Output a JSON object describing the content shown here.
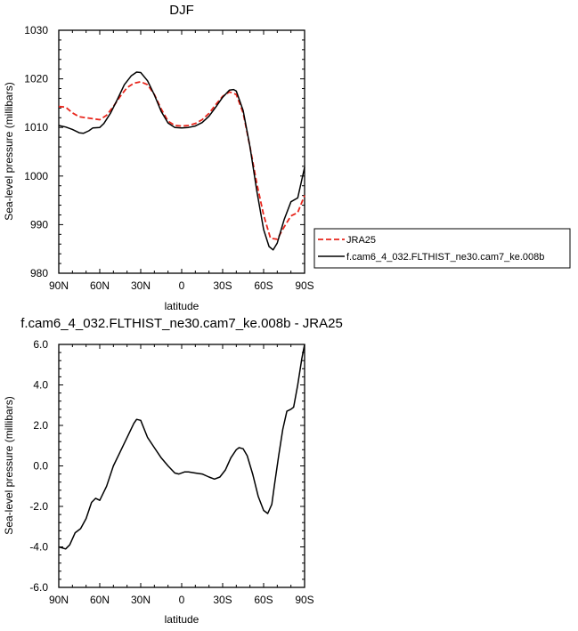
{
  "chart_data": [
    {
      "type": "line",
      "title": "DJF",
      "xlabel": "latitude",
      "ylabel": "Sea-level pressure (millibars)",
      "xlim": [
        90,
        -90
      ],
      "ylim": [
        980,
        1030
      ],
      "xticks": [
        90,
        60,
        30,
        0,
        -30,
        -60,
        -90
      ],
      "xtick_labels": [
        "90N",
        "60N",
        "30N",
        "0",
        "30S",
        "60S",
        "90S"
      ],
      "yticks": [
        980,
        990,
        1000,
        1010,
        1020,
        1030
      ],
      "ytick_labels": [
        "980",
        "990",
        "1000",
        "1010",
        "1020",
        "1030"
      ],
      "grid": false,
      "legend": "right",
      "series": [
        {
          "name": "JRA25",
          "color": "#e8261c",
          "dash": "dashed",
          "points": [
            [
              90,
              1014.3
            ],
            [
              85,
              1014.2
            ],
            [
              80,
              1013
            ],
            [
              75,
              1012.2
            ],
            [
              70,
              1012
            ],
            [
              65,
              1011.8
            ],
            [
              60,
              1011.6
            ],
            [
              55,
              1012.5
            ],
            [
              50,
              1014.3
            ],
            [
              45,
              1016.4
            ],
            [
              40,
              1018.2
            ],
            [
              35,
              1019.1
            ],
            [
              30,
              1019.4
            ],
            [
              25,
              1018.8
            ],
            [
              20,
              1016.8
            ],
            [
              15,
              1013.8
            ],
            [
              10,
              1011.3
            ],
            [
              5,
              1010.4
            ],
            [
              0,
              1010.3
            ],
            [
              -5,
              1010.4
            ],
            [
              -10,
              1010.8
            ],
            [
              -15,
              1011.6
            ],
            [
              -20,
              1012.9
            ],
            [
              -25,
              1014.7
            ],
            [
              -30,
              1016.4
            ],
            [
              -35,
              1017.3
            ],
            [
              -40,
              1016.8
            ],
            [
              -45,
              1013
            ],
            [
              -50,
              1006
            ],
            [
              -55,
              998.5
            ],
            [
              -60,
              992
            ],
            [
              -65,
              987.2
            ],
            [
              -70,
              987
            ],
            [
              -75,
              989.5
            ],
            [
              -80,
              991.8
            ],
            [
              -85,
              992.5
            ],
            [
              -90,
              996
            ]
          ]
        },
        {
          "name": "f.cam6_4_032.FLTHIST_ne30.cam7_ke.008b",
          "color": "#000000",
          "dash": "solid",
          "points": [
            [
              90,
              1010.4
            ],
            [
              85,
              1010.1
            ],
            [
              80,
              1009.6
            ],
            [
              75,
              1008.9
            ],
            [
              72,
              1008.8
            ],
            [
              68,
              1009.3
            ],
            [
              65,
              1009.9
            ],
            [
              60,
              1010
            ],
            [
              57,
              1010.8
            ],
            [
              52,
              1013
            ],
            [
              47,
              1015.8
            ],
            [
              42,
              1018.8
            ],
            [
              37,
              1020.6
            ],
            [
              33,
              1021.4
            ],
            [
              30,
              1021.3
            ],
            [
              25,
              1019.6
            ],
            [
              20,
              1016.7
            ],
            [
              15,
              1013.3
            ],
            [
              10,
              1010.9
            ],
            [
              5,
              1010
            ],
            [
              0,
              1009.9
            ],
            [
              -5,
              1010
            ],
            [
              -10,
              1010.3
            ],
            [
              -15,
              1011
            ],
            [
              -20,
              1012.3
            ],
            [
              -25,
              1014.2
            ],
            [
              -30,
              1016.2
            ],
            [
              -35,
              1017.7
            ],
            [
              -38,
              1017.8
            ],
            [
              -40,
              1017.5
            ],
            [
              -45,
              1013.5
            ],
            [
              -50,
              1006
            ],
            [
              -55,
              997
            ],
            [
              -60,
              989
            ],
            [
              -64,
              985.5
            ],
            [
              -67,
              984.8
            ],
            [
              -70,
              986.2
            ],
            [
              -75,
              991
            ],
            [
              -80,
              994.7
            ],
            [
              -85,
              995.5
            ],
            [
              -90,
              1001.8
            ]
          ]
        }
      ]
    },
    {
      "type": "line",
      "title": "f.cam6_4_032.FLTHIST_ne30.cam7_ke.008b - JRA25",
      "xlabel": "latitude",
      "ylabel": "Sea-level pressure (millibars)",
      "xlim": [
        90,
        -90
      ],
      "ylim": [
        -6,
        6
      ],
      "xticks": [
        90,
        60,
        30,
        0,
        -30,
        -60,
        -90
      ],
      "xtick_labels": [
        "90N",
        "60N",
        "30N",
        "0",
        "30S",
        "60S",
        "90S"
      ],
      "yticks": [
        -6,
        -4,
        -2,
        0,
        2,
        4,
        6
      ],
      "ytick_labels": [
        "-6.0",
        "-4.0",
        "-2.0",
        "0.0",
        "2.0",
        "4.0",
        "6.0"
      ],
      "grid": false,
      "series": [
        {
          "name": "",
          "color": "#000000",
          "dash": "solid",
          "points": [
            [
              90,
              -4
            ],
            [
              85,
              -4.1
            ],
            [
              82,
              -3.9
            ],
            [
              78,
              -3.3
            ],
            [
              74,
              -3.1
            ],
            [
              70,
              -2.6
            ],
            [
              66,
              -1.8
            ],
            [
              63,
              -1.6
            ],
            [
              60,
              -1.7
            ],
            [
              55,
              -1
            ],
            [
              50,
              0
            ],
            [
              45,
              0.7
            ],
            [
              40,
              1.4
            ],
            [
              35,
              2.1
            ],
            [
              33,
              2.3
            ],
            [
              30,
              2.25
            ],
            [
              25,
              1.4
            ],
            [
              20,
              0.9
            ],
            [
              15,
              0.4
            ],
            [
              10,
              0
            ],
            [
              5,
              -0.35
            ],
            [
              2,
              -0.4
            ],
            [
              -2,
              -0.3
            ],
            [
              -5,
              -0.3
            ],
            [
              -10,
              -0.35
            ],
            [
              -15,
              -0.4
            ],
            [
              -20,
              -0.55
            ],
            [
              -24,
              -0.65
            ],
            [
              -28,
              -0.55
            ],
            [
              -32,
              -0.2
            ],
            [
              -36,
              0.4
            ],
            [
              -40,
              0.8
            ],
            [
              -42,
              0.9
            ],
            [
              -45,
              0.85
            ],
            [
              -48,
              0.5
            ],
            [
              -52,
              -0.4
            ],
            [
              -56,
              -1.5
            ],
            [
              -60,
              -2.2
            ],
            [
              -63,
              -2.35
            ],
            [
              -66,
              -1.9
            ],
            [
              -68,
              -0.9
            ],
            [
              -71,
              0.5
            ],
            [
              -74,
              1.8
            ],
            [
              -77,
              2.7
            ],
            [
              -80,
              2.8
            ],
            [
              -82,
              2.9
            ],
            [
              -85,
              4
            ],
            [
              -88,
              5.3
            ],
            [
              -90,
              6
            ]
          ]
        }
      ]
    }
  ]
}
